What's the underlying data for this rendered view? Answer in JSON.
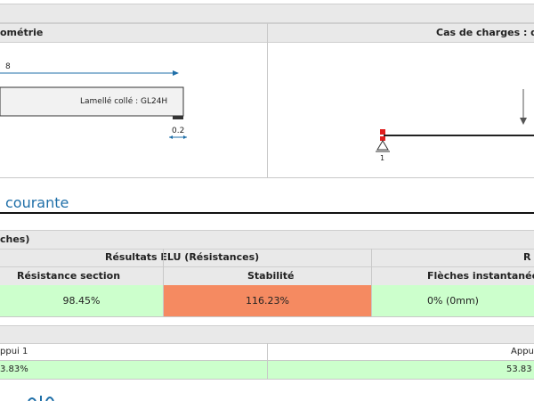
{
  "panels": {
    "left_title": "ométrie",
    "right_title": "Cas de charges : daN,"
  },
  "geometry": {
    "span_label": "8",
    "beam_label": "Lamellé collé : GL24H",
    "support_dim": "0.2"
  },
  "loads": {
    "node_label": "1"
  },
  "section": {
    "title": "courante"
  },
  "results": {
    "group_header": "ches)",
    "elu_header": "Résultats ELU (Résistances)",
    "right_header": "R",
    "columns": [
      "Résistance section",
      "Stabilité",
      "Flèches instantanées"
    ],
    "values": [
      "98.45%",
      "116.23%",
      "0% (0mm)"
    ]
  },
  "supports": {
    "left_label": "ppui 1",
    "right_label": "Appu",
    "left_value": "3.83%",
    "right_value": "53.83"
  },
  "colors": {
    "ok": "#ccffcc",
    "fail": "#f58a61",
    "accent": "#1f6fa8"
  }
}
